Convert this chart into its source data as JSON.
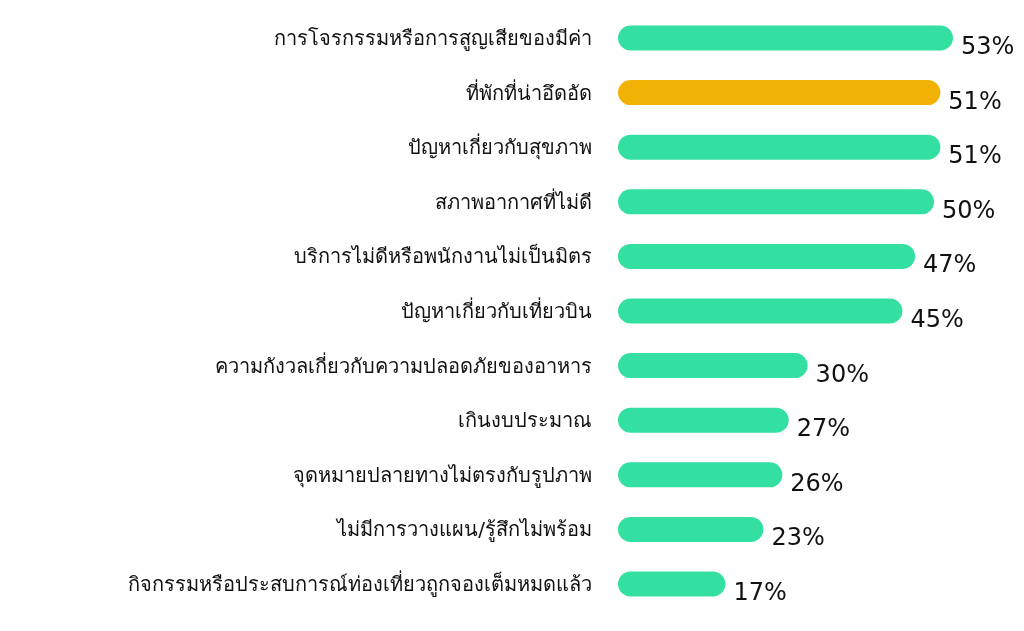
{
  "chart_data": {
    "type": "bar",
    "orientation": "horizontal",
    "categories": [
      "การโจรกรรมหรือการสูญเสียของมีค่า",
      "ที่พักที่น่าอึดอัด",
      "ปัญหาเกี่ยวกับสุขภาพ",
      "สภาพอากาศที่ไม่ดี",
      "บริการไม่ดีหรือพนักงานไม่เป็นมิตร",
      "ปัญหาเกี่ยวกับเที่ยวบิน",
      "ความกังวลเกี่ยวกับความปลอดภัยของอาหาร",
      "เกินงบประมาณ",
      "จุดหมายปลายทางไม่ตรงกับรูปภาพ",
      "ไม่มีการวางแผน/รู้สึกไม่พร้อม",
      "กิจกรรมหรือประสบการณ์ท่องเที่ยวถูกจองเต็มหมดแล้ว"
    ],
    "values": [
      53,
      51,
      51,
      50,
      47,
      45,
      30,
      27,
      26,
      23,
      17
    ],
    "value_labels": [
      "53%",
      "51%",
      "51%",
      "50%",
      "47%",
      "45%",
      "30%",
      "27%",
      "26%",
      "23%",
      "17%"
    ],
    "colors": [
      "#34e0a1",
      "#f2b203",
      "#34e0a1",
      "#34e0a1",
      "#34e0a1",
      "#34e0a1",
      "#34e0a1",
      "#34e0a1",
      "#34e0a1",
      "#34e0a1",
      "#34e0a1"
    ]
  }
}
